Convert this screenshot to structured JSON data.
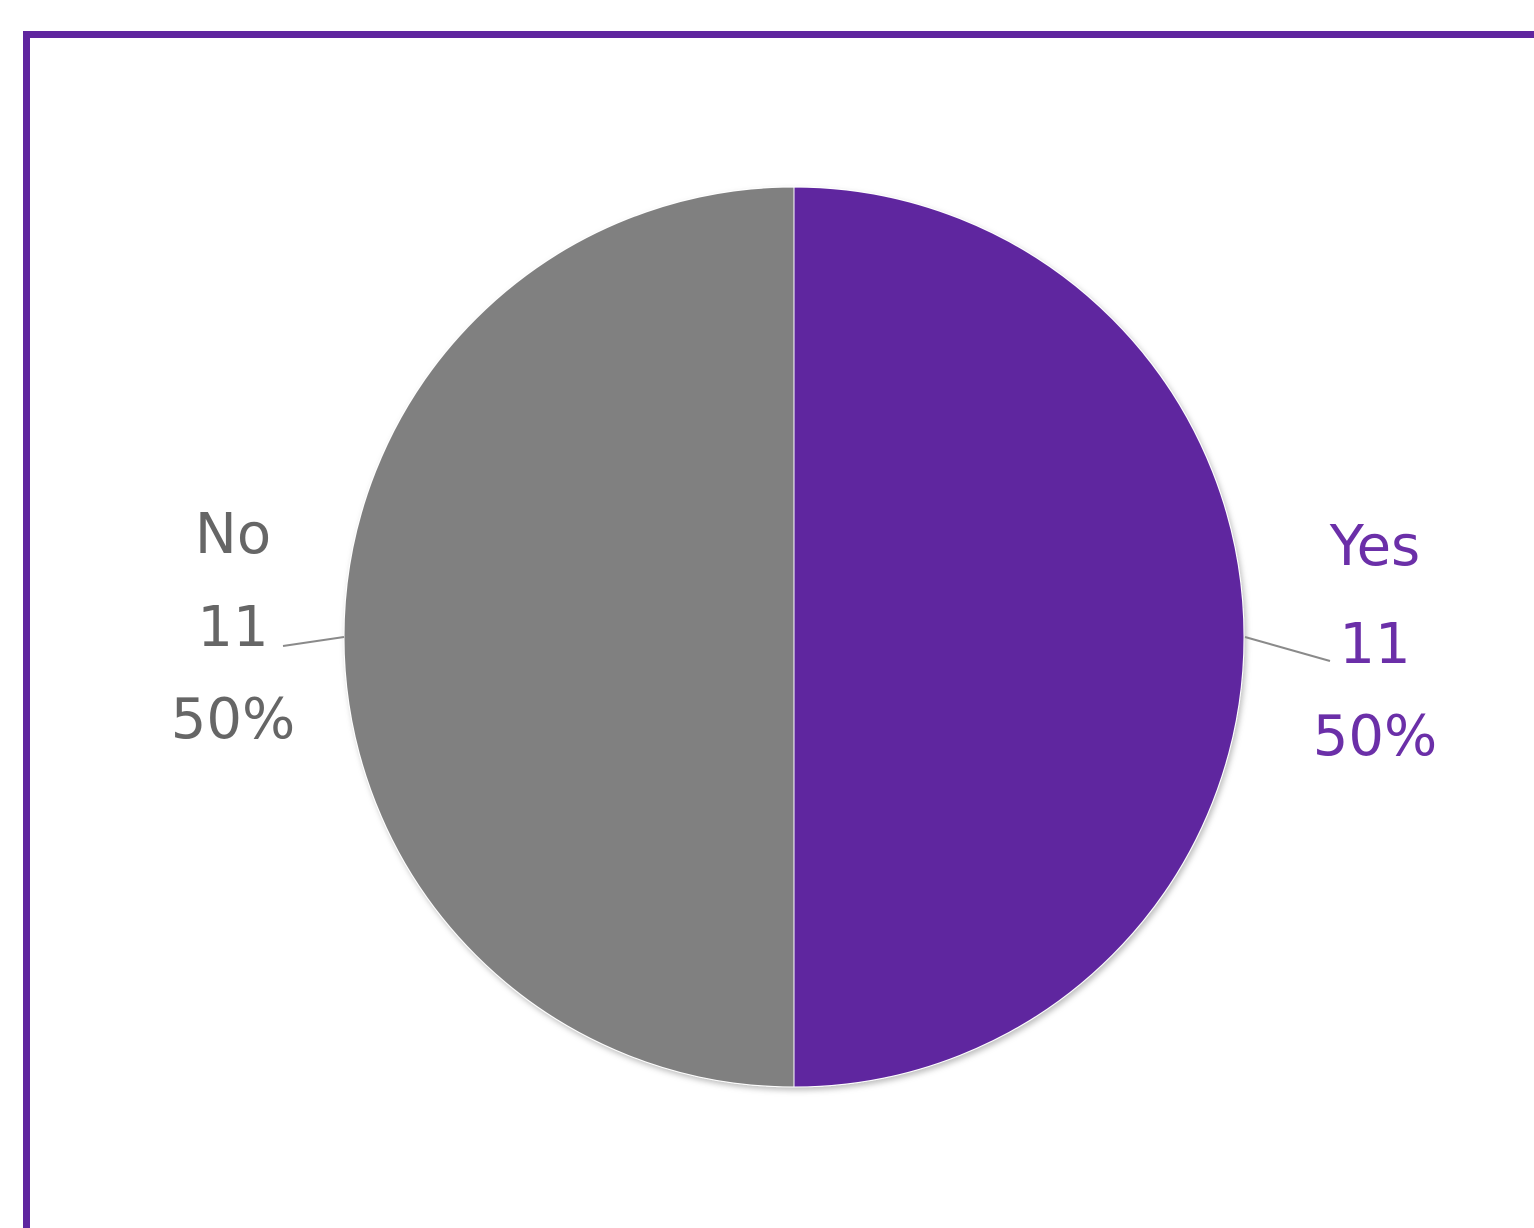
{
  "chart_data": {
    "type": "pie",
    "title": "",
    "categories": [
      "Yes",
      "No"
    ],
    "values": [
      11,
      11
    ],
    "percent_labels": [
      "50%",
      "50%"
    ],
    "colors": [
      "#5f259f",
      "#808080"
    ],
    "label_colors": [
      "#6b2fa8",
      "#666666"
    ],
    "legend": "none",
    "data_labels": "category, value, percentage (outside with leader lines)"
  },
  "theme": {
    "accent": "#5f259f",
    "background": "#ffffff"
  }
}
